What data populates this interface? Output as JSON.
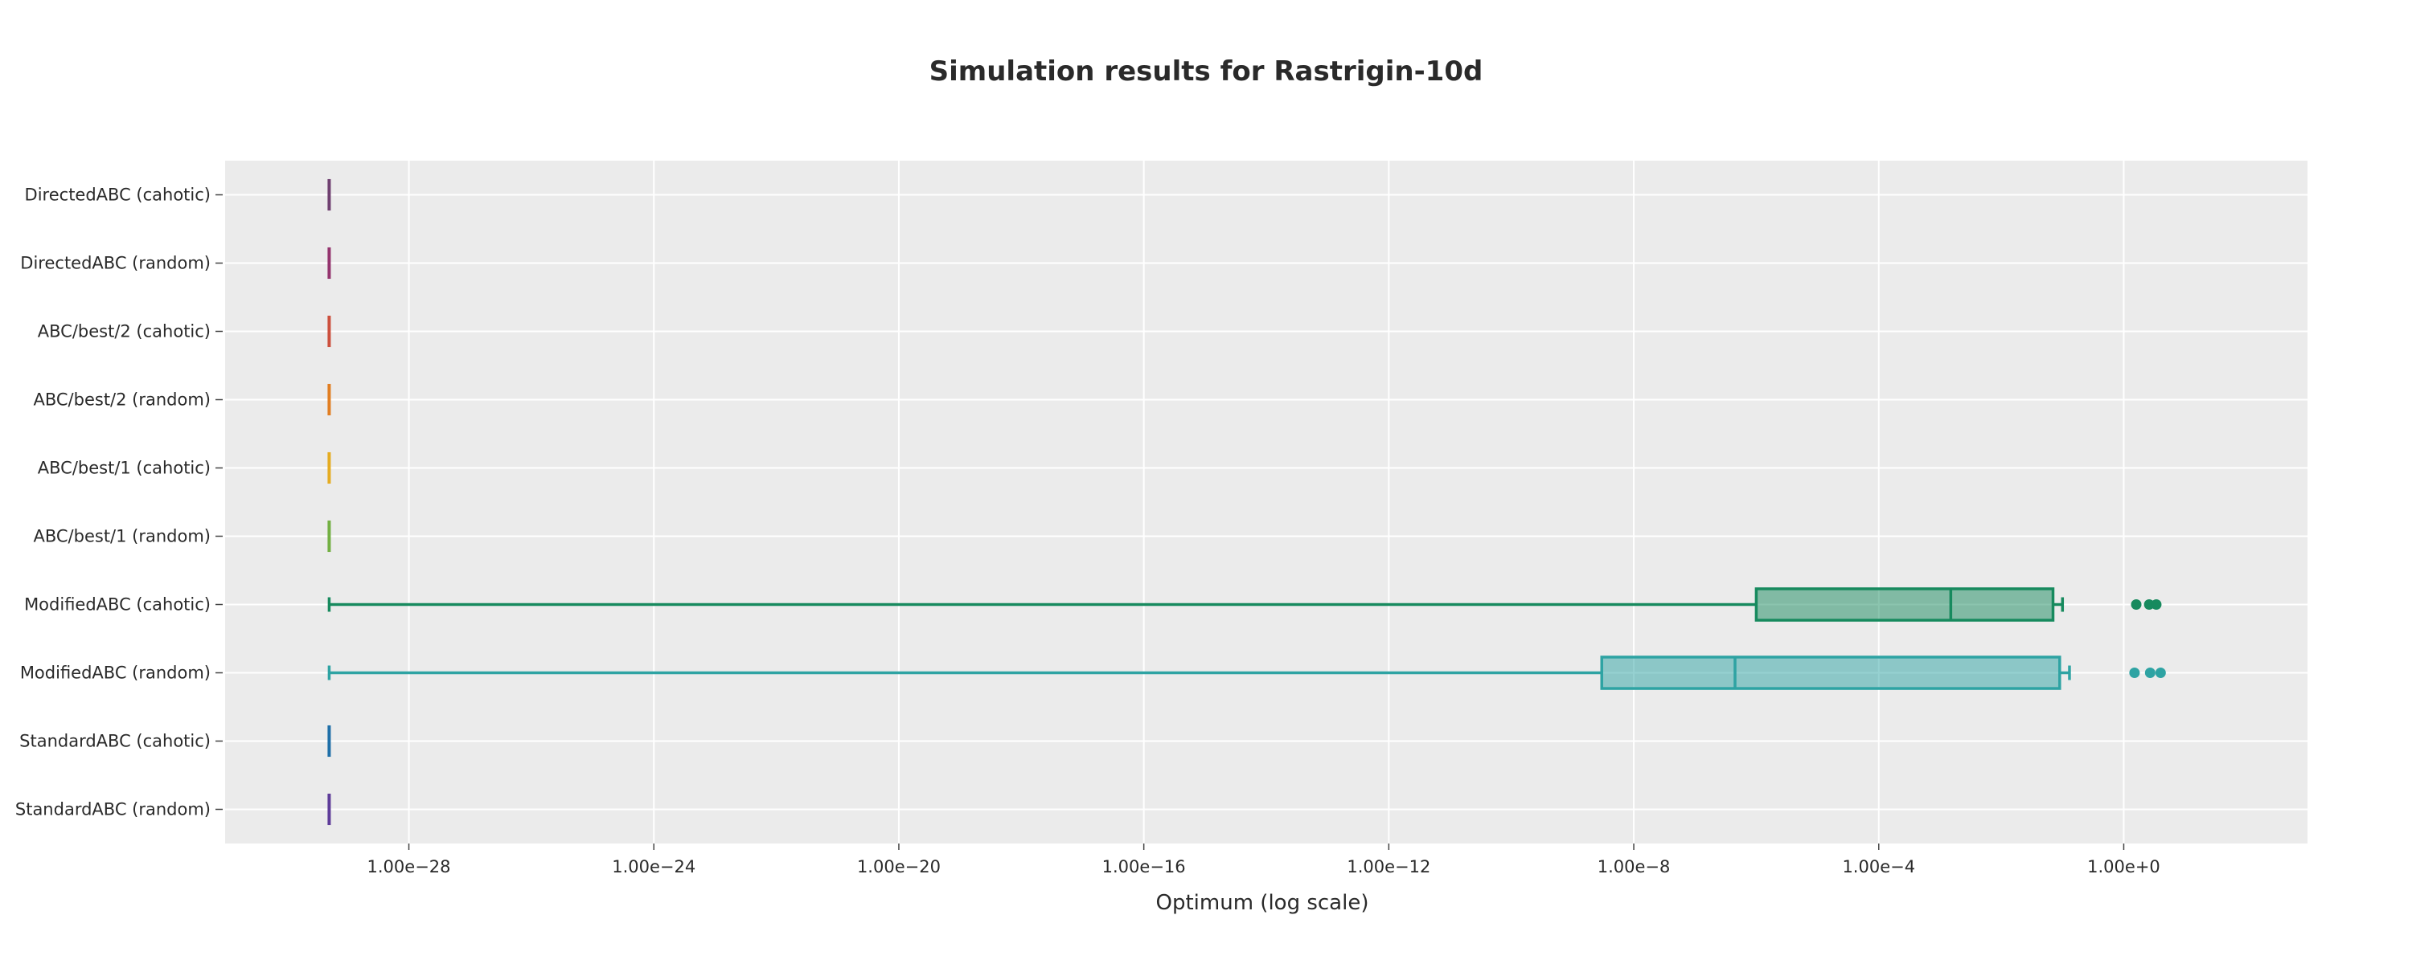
{
  "chart_data": {
    "type": "box",
    "orientation": "horizontal",
    "title": "Simulation results for Rastrigin-10d",
    "xlabel": "Optimum (log scale)",
    "ylabel": "",
    "x_scale": "log",
    "xlim": [
      1e-31,
      1000.0
    ],
    "x_ticks": [
      1e-28,
      1e-24,
      1e-20,
      1e-16,
      1e-12,
      1e-08,
      0.0001,
      1
    ],
    "x_tick_labels": [
      "1.00e−28",
      "1.00e−24",
      "1.00e−20",
      "1.00e−16",
      "1.00e−12",
      "1.00e−8",
      "1.00e−4",
      "1.00e+0"
    ],
    "grid": true,
    "legend": "none",
    "background": "#ebebeb",
    "categories": [
      "StandardABC (random)",
      "StandardABC (cahotic)",
      "ModifiedABC (random)",
      "ModifiedABC (cahotic)",
      "ABC/best/1 (random)",
      "ABC/best/1 (cahotic)",
      "ABC/best/2 (random)",
      "ABC/best/2 (cahotic)",
      "DirectedABC (random)",
      "DirectedABC (cahotic)"
    ],
    "series": [
      {
        "category": "StandardABC (random)",
        "color": "#5e3c99",
        "min": 5e-30,
        "q1": 5e-30,
        "median": 5e-30,
        "q3": 5e-30,
        "max": 5e-30,
        "outliers": []
      },
      {
        "category": "StandardABC (cahotic)",
        "color": "#1f6fa8",
        "min": 5e-30,
        "q1": 5e-30,
        "median": 5e-30,
        "q3": 5e-30,
        "max": 5e-30,
        "outliers": []
      },
      {
        "category": "ModifiedABC (random)",
        "color": "#2ea3a3",
        "min": 5e-30,
        "q1": 3e-09,
        "median": 4.5e-07,
        "q3": 0.09,
        "max": 0.13,
        "outliers": [
          1.5,
          2.7,
          4.0
        ]
      },
      {
        "category": "ModifiedABC (cahotic)",
        "color": "#178a5e",
        "min": 5e-30,
        "q1": 1e-06,
        "median": 0.0015,
        "q3": 0.07,
        "max": 0.1,
        "outliers": [
          1.6,
          2.6,
          3.4
        ]
      },
      {
        "category": "ABC/best/1 (random)",
        "color": "#73b043",
        "min": 5e-30,
        "q1": 5e-30,
        "median": 5e-30,
        "q3": 5e-30,
        "max": 5e-30,
        "outliers": []
      },
      {
        "category": "ABC/best/1 (cahotic)",
        "color": "#e5ac22",
        "min": 5e-30,
        "q1": 5e-30,
        "median": 5e-30,
        "q3": 5e-30,
        "max": 5e-30,
        "outliers": []
      },
      {
        "category": "ABC/best/2 (random)",
        "color": "#e17e22",
        "min": 5e-30,
        "q1": 5e-30,
        "median": 5e-30,
        "q3": 5e-30,
        "max": 5e-30,
        "outliers": []
      },
      {
        "category": "ABC/best/2 (cahotic)",
        "color": "#cc503e",
        "min": 5e-30,
        "q1": 5e-30,
        "median": 5e-30,
        "q3": 5e-30,
        "max": 5e-30,
        "outliers": []
      },
      {
        "category": "DirectedABC (random)",
        "color": "#94346e",
        "min": 5e-30,
        "q1": 5e-30,
        "median": 5e-30,
        "q3": 5e-30,
        "max": 5e-30,
        "outliers": []
      },
      {
        "category": "DirectedABC (cahotic)",
        "color": "#6f4070",
        "min": 5e-30,
        "q1": 5e-30,
        "median": 5e-30,
        "q3": 5e-30,
        "max": 5e-30,
        "outliers": []
      }
    ]
  }
}
